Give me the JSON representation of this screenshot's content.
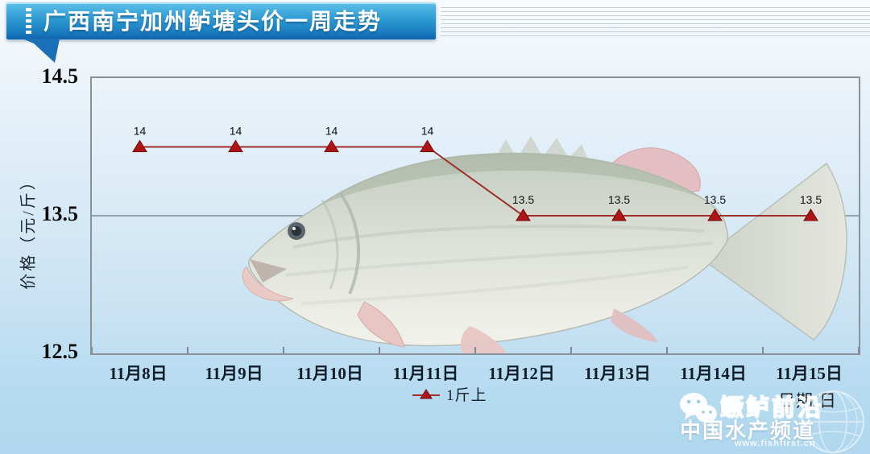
{
  "banner": {
    "title": "广西南宁加州鲈塘头价一周走势"
  },
  "chart_data": {
    "type": "line",
    "title": "广西南宁加州鲈塘头价一周走势",
    "categories": [
      "11月8日",
      "11月9日",
      "11月10日",
      "11月11日",
      "11月12日",
      "11月13日",
      "11月14日",
      "11月15日"
    ],
    "series": [
      {
        "name": "1斤上",
        "values": [
          14,
          14,
          14,
          14,
          13.5,
          13.5,
          13.5,
          13.5
        ]
      }
    ],
    "data_labels": [
      "14",
      "14",
      "14",
      "14",
      "13.5",
      "13.5",
      "13.5",
      "13.5"
    ],
    "xlabel": "日期/日",
    "ylabel": "价格（元/斤）",
    "ylim": [
      12.5,
      14.5
    ],
    "yticks": [
      14.5,
      13.5,
      12.5
    ],
    "grid": "horizontal gridline at 13.5 only",
    "legend_position": "bottom-center",
    "line_color": "#9e2f2b",
    "marker": "triangle",
    "marker_color": "#b01414"
  },
  "legend": {
    "label": "1斤上"
  },
  "xaxis_title": "日期/日",
  "yaxis_title": "价格（元/斤）",
  "watermark": {
    "brand": "鳜鲈前沿",
    "channel": "中国水产频道",
    "url": "www.fishfirst.cn",
    "icons": [
      "wechat-icon",
      "globe-icon"
    ]
  },
  "colors": {
    "banner_top": "#5fc1ea",
    "banner_bottom": "#0f62ab",
    "plot_border": "#87929b",
    "gridline": "#97a1a9",
    "series_line": "#9e2f2b",
    "marker_fill": "#b01414",
    "background_bottom": "#b0d7ee"
  }
}
